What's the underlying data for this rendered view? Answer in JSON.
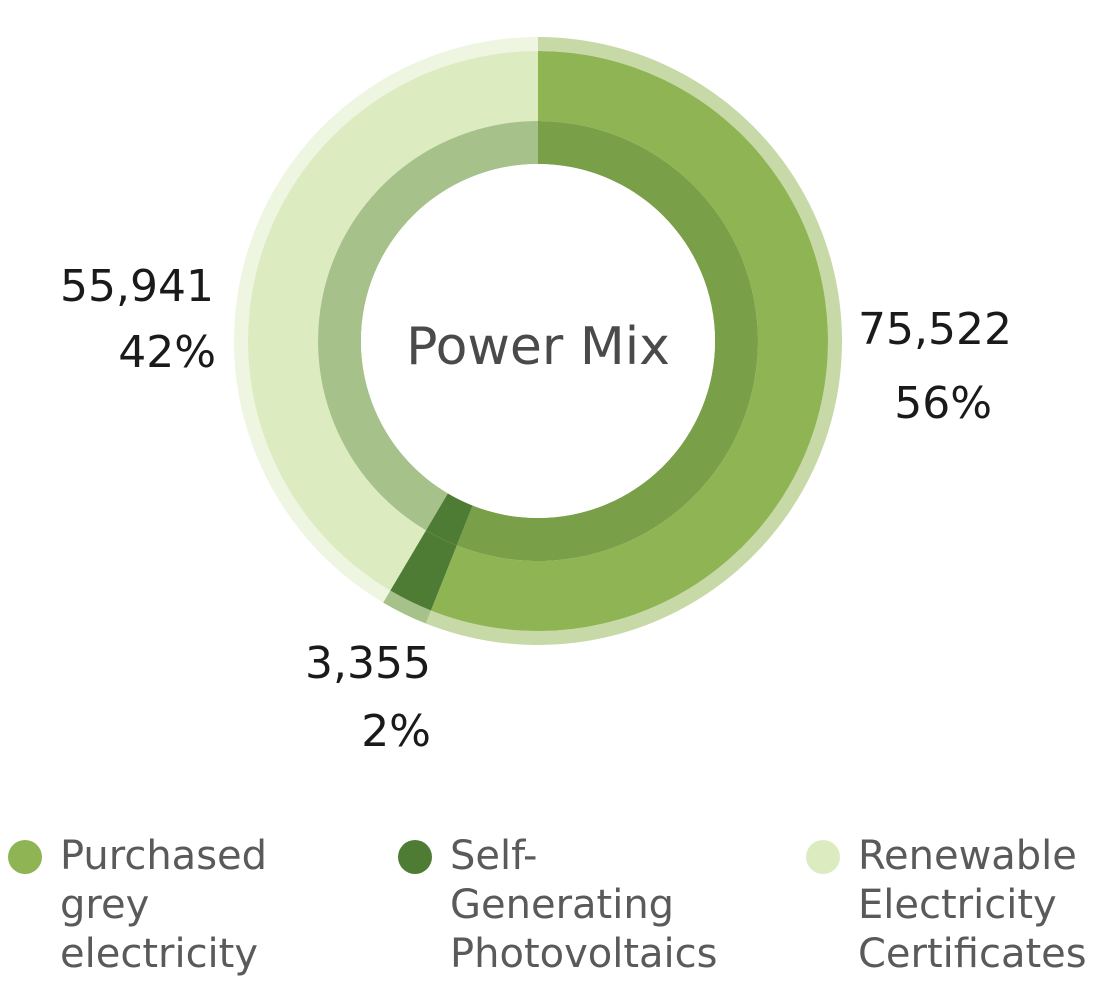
{
  "chart_data": {
    "type": "pie",
    "variant": "donut",
    "center_label": "Power Mix",
    "slices": [
      {
        "name": "Purchased grey electricity",
        "value": 75522,
        "value_label": "75,522",
        "percent": 56,
        "percent_label": "56%",
        "color": "#8fb454",
        "inner_color": "#7a9f49",
        "outer_color": "#c6d9a6"
      },
      {
        "name": "Self-Generating Photovoltaics",
        "value": 3355,
        "value_label": "3,355",
        "percent": 2,
        "percent_label": "2%",
        "color": "#4f7c34",
        "inner_color": "#4f7c34",
        "outer_color": "#a7c18a"
      },
      {
        "name": "Renewable Electricity Certificates",
        "value": 55941,
        "value_label": "55,941",
        "percent": 42,
        "percent_label": "42%",
        "color": "#ddebc0",
        "inner_color": "#a7c18a",
        "outer_color": "#eef5e1"
      }
    ],
    "legend": {
      "placement": "bottom",
      "items": [
        {
          "lines": [
            "Purchased grey",
            "electricity"
          ],
          "color": "#8fb454"
        },
        {
          "lines": [
            "Self-Generating",
            "Photovoltaics"
          ],
          "color": "#4f7c34"
        },
        {
          "lines": [
            "Renewable",
            "Electricity",
            "Certificates"
          ],
          "color": "#ddebc0"
        }
      ]
    }
  }
}
